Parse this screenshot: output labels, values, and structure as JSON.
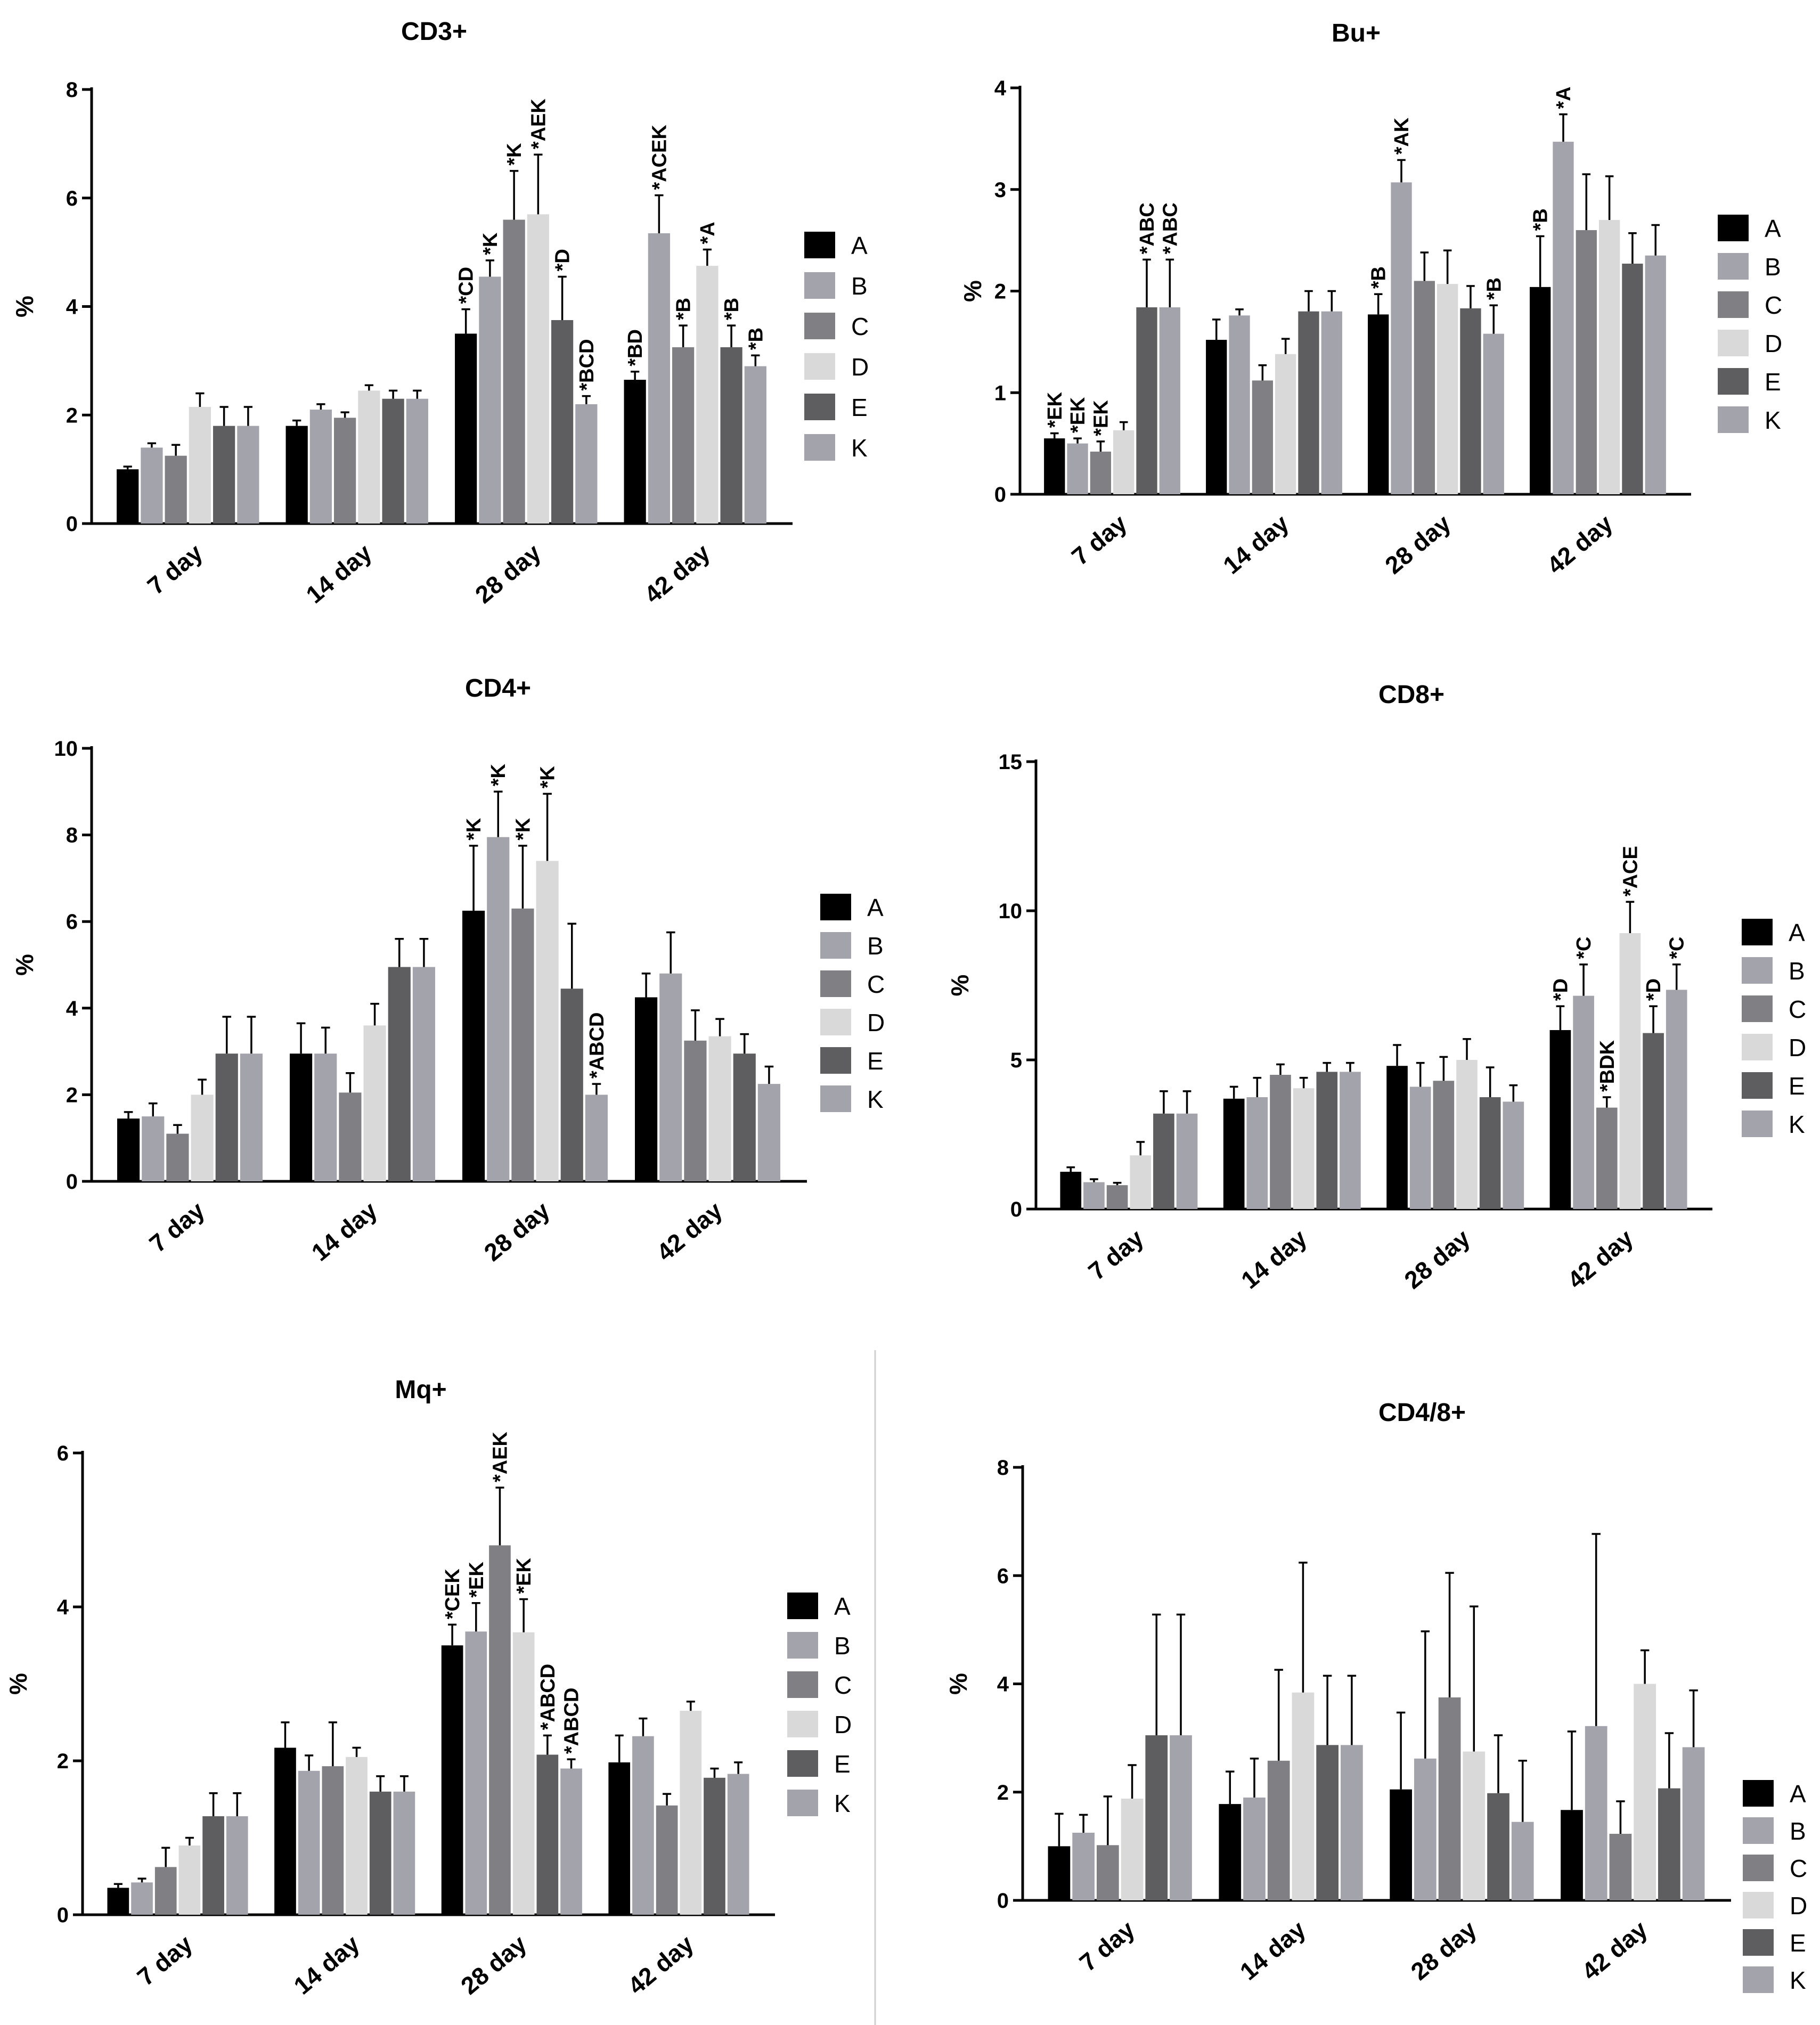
{
  "groups_palette": {
    "A": "#000000",
    "B": "#a3a3ab",
    "C": "#808084",
    "D": "#d9d9d9",
    "E": "#5e5e60",
    "K": "#a3a3ab"
  },
  "chart_data": [
    {
      "type": "bar",
      "title": "CD3+",
      "ylabel": "%",
      "ylim": [
        0,
        8
      ],
      "yticks": [
        "0",
        "2",
        "4",
        "6",
        "8"
      ],
      "categories": [
        "7 day",
        "14 day",
        "28 day",
        "42 day"
      ],
      "legend_position": "right",
      "series": [
        {
          "name": "A",
          "values": [
            1.0,
            1.8,
            3.5,
            2.65
          ],
          "errors": [
            0.05,
            0.1,
            0.45,
            0.15
          ],
          "labels": [
            "",
            "",
            "*CD",
            "*BD"
          ]
        },
        {
          "name": "B",
          "values": [
            1.4,
            2.1,
            4.55,
            5.35
          ],
          "errors": [
            0.08,
            0.1,
            0.3,
            0.7
          ],
          "labels": [
            "",
            "",
            "*K",
            "*ACEK"
          ]
        },
        {
          "name": "C",
          "values": [
            1.25,
            1.95,
            5.6,
            3.25
          ],
          "errors": [
            0.2,
            0.1,
            0.9,
            0.4
          ],
          "labels": [
            "",
            "",
            "*K",
            "*B"
          ]
        },
        {
          "name": "D",
          "values": [
            2.15,
            2.45,
            5.7,
            4.75
          ],
          "errors": [
            0.25,
            0.1,
            1.1,
            0.3
          ],
          "labels": [
            "",
            "",
            "*AEK",
            "*A"
          ]
        },
        {
          "name": "E",
          "values": [
            1.8,
            2.3,
            3.75,
            3.25
          ],
          "errors": [
            0.35,
            0.15,
            0.8,
            0.4
          ],
          "labels": [
            "",
            "",
            "*D",
            "*B"
          ]
        },
        {
          "name": "K",
          "values": [
            1.8,
            2.3,
            2.2,
            2.9
          ],
          "errors": [
            0.35,
            0.15,
            0.15,
            0.2
          ],
          "labels": [
            "",
            "",
            "*BCD",
            "*B"
          ]
        }
      ]
    },
    {
      "type": "bar",
      "title": "Bu+",
      "ylabel": "%",
      "ylim": [
        0,
        4
      ],
      "yticks": [
        "0",
        "1",
        "2",
        "3",
        "4"
      ],
      "categories": [
        "7 day",
        "14 day",
        "28 day",
        "42 day"
      ],
      "legend_position": "right",
      "series": [
        {
          "name": "A",
          "values": [
            0.55,
            1.52,
            1.77,
            2.04
          ],
          "errors": [
            0.05,
            0.2,
            0.2,
            0.5
          ],
          "labels": [
            "*EK",
            "",
            "*B",
            "*B"
          ]
        },
        {
          "name": "B",
          "values": [
            0.5,
            1.76,
            3.07,
            3.47
          ],
          "errors": [
            0.05,
            0.06,
            0.22,
            0.27
          ],
          "labels": [
            "*EK",
            "",
            "*AK",
            "*A"
          ]
        },
        {
          "name": "C",
          "values": [
            0.42,
            1.12,
            2.1,
            2.6
          ],
          "errors": [
            0.1,
            0.15,
            0.28,
            0.55
          ],
          "labels": [
            "*EK",
            "",
            "",
            ""
          ]
        },
        {
          "name": "D",
          "values": [
            0.63,
            1.38,
            2.07,
            2.7
          ],
          "errors": [
            0.08,
            0.15,
            0.33,
            0.43
          ],
          "labels": [
            "",
            "",
            "",
            ""
          ]
        },
        {
          "name": "E",
          "values": [
            1.84,
            1.8,
            1.83,
            2.27
          ],
          "errors": [
            0.47,
            0.2,
            0.22,
            0.3
          ],
          "labels": [
            "*ABC",
            "",
            "",
            ""
          ]
        },
        {
          "name": "K",
          "values": [
            1.84,
            1.8,
            1.58,
            2.35
          ],
          "errors": [
            0.47,
            0.2,
            0.28,
            0.3
          ],
          "labels": [
            "*ABC",
            "",
            "*B",
            ""
          ]
        }
      ]
    },
    {
      "type": "bar",
      "title": "CD4+",
      "ylabel": "%",
      "ylim": [
        0,
        10
      ],
      "yticks": [
        "0",
        "2",
        "4",
        "6",
        "8",
        "10"
      ],
      "categories": [
        "7 day",
        "14 day",
        "28 day",
        "42 day"
      ],
      "legend_position": "right",
      "series": [
        {
          "name": "A",
          "values": [
            1.45,
            2.95,
            6.25,
            4.25
          ],
          "errors": [
            0.15,
            0.7,
            1.5,
            0.55
          ],
          "labels": [
            "",
            "",
            "*K",
            ""
          ]
        },
        {
          "name": "B",
          "values": [
            1.5,
            2.95,
            7.95,
            4.8
          ],
          "errors": [
            0.3,
            0.6,
            1.05,
            0.95
          ],
          "labels": [
            "",
            "",
            "*K",
            ""
          ]
        },
        {
          "name": "C",
          "values": [
            1.1,
            2.05,
            6.3,
            3.25
          ],
          "errors": [
            0.2,
            0.45,
            1.45,
            0.7
          ],
          "labels": [
            "",
            "",
            "*K",
            ""
          ]
        },
        {
          "name": "D",
          "values": [
            2.0,
            3.6,
            7.4,
            3.35
          ],
          "errors": [
            0.35,
            0.5,
            1.55,
            0.4
          ],
          "labels": [
            "",
            "",
            "*K",
            ""
          ]
        },
        {
          "name": "E",
          "values": [
            2.95,
            4.95,
            4.45,
            2.95
          ],
          "errors": [
            0.85,
            0.65,
            1.5,
            0.45
          ],
          "labels": [
            "",
            "",
            "",
            ""
          ]
        },
        {
          "name": "K",
          "values": [
            2.95,
            4.95,
            2.0,
            2.25
          ],
          "errors": [
            0.85,
            0.65,
            0.25,
            0.4
          ],
          "labels": [
            "",
            "",
            "*ABCD",
            ""
          ]
        }
      ]
    },
    {
      "type": "bar",
      "title": "CD8+",
      "ylabel": "%",
      "ylim": [
        0,
        15
      ],
      "yticks": [
        "0",
        "5",
        "10",
        "15"
      ],
      "categories": [
        "7 day",
        "14 day",
        "28 day",
        "42 day"
      ],
      "legend_position": "right",
      "series": [
        {
          "name": "A",
          "values": [
            1.25,
            3.7,
            4.8,
            6.0
          ],
          "errors": [
            0.15,
            0.4,
            0.7,
            0.8
          ],
          "labels": [
            "",
            "",
            "",
            "*D"
          ]
        },
        {
          "name": "B",
          "values": [
            0.9,
            3.75,
            4.1,
            7.15
          ],
          "errors": [
            0.1,
            0.65,
            0.8,
            1.05
          ],
          "labels": [
            "",
            "",
            "",
            "*C"
          ]
        },
        {
          "name": "C",
          "values": [
            0.8,
            4.5,
            4.3,
            3.4
          ],
          "errors": [
            0.08,
            0.35,
            0.8,
            0.35
          ],
          "labels": [
            "",
            "",
            "",
            "*BDK"
          ]
        },
        {
          "name": "D",
          "values": [
            1.8,
            4.05,
            5.0,
            9.25
          ],
          "errors": [
            0.45,
            0.35,
            0.7,
            1.05
          ],
          "labels": [
            "",
            "",
            "",
            "*ACE"
          ]
        },
        {
          "name": "E",
          "values": [
            3.2,
            4.6,
            3.75,
            5.9
          ],
          "errors": [
            0.75,
            0.3,
            1.0,
            0.9
          ],
          "labels": [
            "",
            "",
            "",
            "*D"
          ]
        },
        {
          "name": "K",
          "values": [
            3.2,
            4.6,
            3.6,
            7.35
          ],
          "errors": [
            0.75,
            0.3,
            0.55,
            0.85
          ],
          "labels": [
            "",
            "",
            "",
            "*C"
          ]
        }
      ]
    },
    {
      "type": "bar",
      "title": "Mq+",
      "ylabel": "%",
      "ylim": [
        0,
        6
      ],
      "yticks": [
        "0",
        "2",
        "4",
        "6"
      ],
      "categories": [
        "7 day",
        "14 day",
        "28 day",
        "42 day"
      ],
      "legend_position": "right",
      "series": [
        {
          "name": "A",
          "values": [
            0.35,
            2.17,
            3.5,
            1.98
          ],
          "errors": [
            0.05,
            0.33,
            0.27,
            0.35
          ],
          "labels": [
            "",
            "",
            "*CEK",
            ""
          ]
        },
        {
          "name": "B",
          "values": [
            0.42,
            1.87,
            3.68,
            2.32
          ],
          "errors": [
            0.05,
            0.2,
            0.37,
            0.23
          ],
          "labels": [
            "",
            "",
            "*EK",
            ""
          ]
        },
        {
          "name": "C",
          "values": [
            0.62,
            1.93,
            4.8,
            1.42
          ],
          "errors": [
            0.25,
            0.57,
            0.75,
            0.15
          ],
          "labels": [
            "",
            "",
            "*AEK",
            ""
          ]
        },
        {
          "name": "D",
          "values": [
            0.9,
            2.05,
            3.67,
            2.65
          ],
          "errors": [
            0.1,
            0.12,
            0.43,
            0.12
          ],
          "labels": [
            "",
            "",
            "*EK",
            ""
          ]
        },
        {
          "name": "E",
          "values": [
            1.28,
            1.6,
            2.08,
            1.78
          ],
          "errors": [
            0.3,
            0.2,
            0.25,
            0.12
          ],
          "labels": [
            "",
            "",
            "*ABCD",
            ""
          ]
        },
        {
          "name": "K",
          "values": [
            1.28,
            1.6,
            1.9,
            1.83
          ],
          "errors": [
            0.3,
            0.2,
            0.12,
            0.15
          ],
          "labels": [
            "",
            "",
            "*ABCD",
            ""
          ]
        }
      ]
    },
    {
      "type": "bar",
      "title": "CD4/8+",
      "ylabel": "%",
      "ylim": [
        0,
        8
      ],
      "yticks": [
        "0",
        "2",
        "4",
        "6",
        "8"
      ],
      "categories": [
        "7 day",
        "14 day",
        "28 day",
        "42 day"
      ],
      "legend_position": "right",
      "series": [
        {
          "name": "A",
          "values": [
            1.0,
            1.78,
            2.05,
            1.67
          ],
          "errors": [
            0.6,
            0.6,
            1.42,
            1.45
          ],
          "labels": [
            "",
            "",
            "",
            ""
          ]
        },
        {
          "name": "B",
          "values": [
            1.25,
            1.9,
            2.62,
            3.22
          ],
          "errors": [
            0.33,
            0.72,
            2.35,
            3.55
          ],
          "labels": [
            "",
            "",
            "",
            ""
          ]
        },
        {
          "name": "C",
          "values": [
            1.02,
            2.58,
            3.75,
            1.23
          ],
          "errors": [
            0.9,
            1.68,
            2.3,
            0.6
          ],
          "labels": [
            "",
            "",
            "",
            ""
          ]
        },
        {
          "name": "D",
          "values": [
            1.88,
            3.84,
            2.75,
            4.0
          ],
          "errors": [
            0.62,
            2.4,
            2.68,
            0.62
          ],
          "labels": [
            "",
            "",
            "",
            ""
          ]
        },
        {
          "name": "E",
          "values": [
            3.05,
            2.87,
            1.98,
            2.07
          ],
          "errors": [
            2.23,
            1.28,
            1.07,
            1.02
          ],
          "labels": [
            "",
            "",
            "",
            ""
          ]
        },
        {
          "name": "K",
          "values": [
            3.05,
            2.87,
            1.45,
            2.83
          ],
          "errors": [
            2.23,
            1.28,
            1.13,
            1.05
          ],
          "labels": [
            "",
            "",
            "",
            ""
          ]
        }
      ]
    }
  ]
}
